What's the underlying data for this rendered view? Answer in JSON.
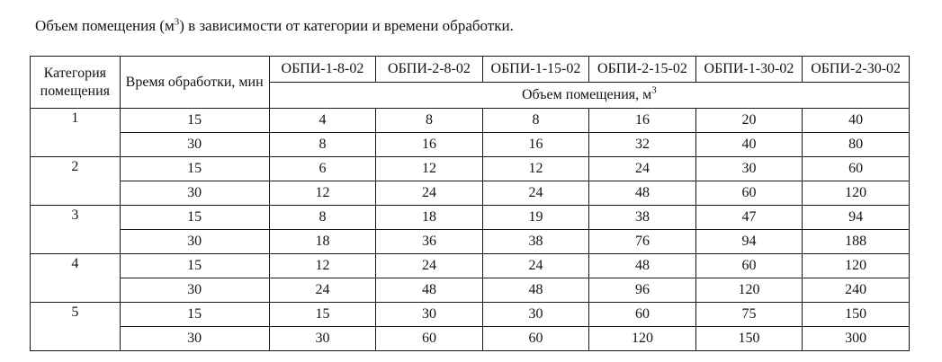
{
  "page": {
    "title": {
      "before_sup": "Объем помещения (м",
      "sup": "3",
      "after_sup": ") в зависимости от категории и времени обработки."
    }
  },
  "table": {
    "headers": {
      "category": "Категория помещения",
      "time": "Время обработки, мин",
      "products": [
        "ОБПИ-1-8-02",
        "ОБПИ-2-8-02",
        "ОБПИ-1-15-02",
        "ОБПИ-2-15-02",
        "ОБПИ-1-30-02",
        "ОБПИ-2-30-02"
      ],
      "volume": {
        "before_sup": "Объем помещения, м",
        "sup": "3"
      }
    },
    "rows": [
      {
        "category": "1",
        "time_rows": [
          {
            "time": "15",
            "values": [
              "4",
              "8",
              "8",
              "16",
              "20",
              "40"
            ]
          },
          {
            "time": "30",
            "values": [
              "8",
              "16",
              "16",
              "32",
              "40",
              "80"
            ]
          }
        ]
      },
      {
        "category": "2",
        "time_rows": [
          {
            "time": "15",
            "values": [
              "6",
              "12",
              "12",
              "24",
              "30",
              "60"
            ]
          },
          {
            "time": "30",
            "values": [
              "12",
              "24",
              "24",
              "48",
              "60",
              "120"
            ]
          }
        ]
      },
      {
        "category": "3",
        "time_rows": [
          {
            "time": "15",
            "values": [
              "8",
              "18",
              "19",
              "38",
              "47",
              "94"
            ]
          },
          {
            "time": "30",
            "values": [
              "18",
              "36",
              "38",
              "76",
              "94",
              "188"
            ]
          }
        ]
      },
      {
        "category": "4",
        "time_rows": [
          {
            "time": "15",
            "values": [
              "12",
              "24",
              "24",
              "48",
              "60",
              "120"
            ]
          },
          {
            "time": "30",
            "values": [
              "24",
              "48",
              "48",
              "96",
              "120",
              "240"
            ]
          }
        ]
      },
      {
        "category": "5",
        "time_rows": [
          {
            "time": "15",
            "values": [
              "15",
              "30",
              "30",
              "60",
              "75",
              "150"
            ]
          },
          {
            "time": "30",
            "values": [
              "30",
              "60",
              "60",
              "120",
              "150",
              "300"
            ]
          }
        ]
      }
    ]
  }
}
